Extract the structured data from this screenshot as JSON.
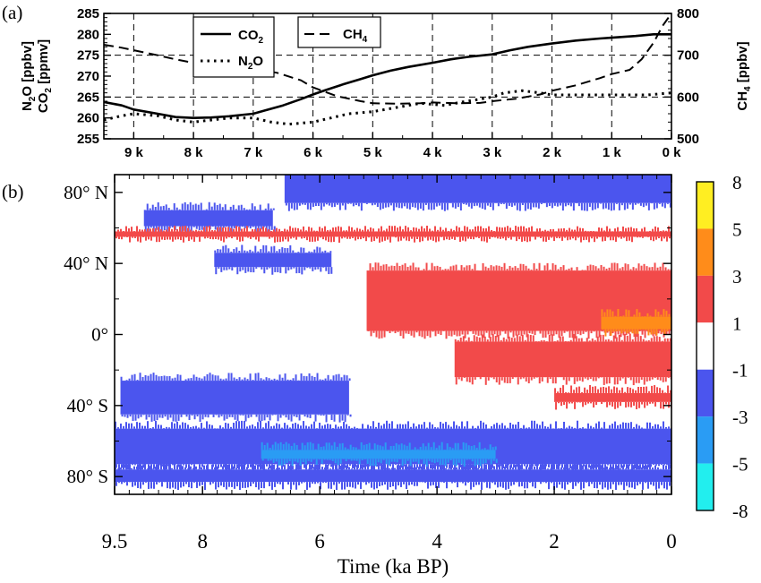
{
  "panel_a": {
    "panel_label": "(a)",
    "chart_data": {
      "type": "line",
      "x_tick_labels": [
        "9 k",
        "8 k",
        "7 k",
        "6 k",
        "5 k",
        "4 k",
        "3 k",
        "2 k",
        "1 k",
        "0 k"
      ],
      "x_ticks": [
        9,
        8,
        7,
        6,
        5,
        4,
        3,
        2,
        1,
        0
      ],
      "xlim": [
        9.5,
        0
      ],
      "left_axis": {
        "label_line1": "N2O [ppbv]",
        "label_line2": "CO2 [ppmv]",
        "ylim": [
          255,
          285
        ],
        "ticks": [
          "255",
          "260",
          "265",
          "270",
          "275",
          "280",
          "285"
        ]
      },
      "right_axis": {
        "label": "CH4 [ppbv]",
        "ylim": [
          500,
          800
        ],
        "ticks": [
          "500",
          "600",
          "700",
          "800"
        ]
      },
      "legend": {
        "placement": "top-center",
        "entries": [
          "CO2",
          "N2O",
          "CH4"
        ]
      },
      "grid": true,
      "series": [
        {
          "name": "CO2",
          "style": "solid",
          "axis": "left",
          "x": [
            9.5,
            9.2,
            9.0,
            8.6,
            8.3,
            8.0,
            7.7,
            7.4,
            7.0,
            6.8,
            6.5,
            6.2,
            6.0,
            5.8,
            5.5,
            5.2,
            5.0,
            4.7,
            4.4,
            4.0,
            3.7,
            3.4,
            3.0,
            2.7,
            2.4,
            2.0,
            1.6,
            1.2,
            1.0,
            0.6,
            0.3,
            0.0
          ],
          "y": [
            263.8,
            263.0,
            262.0,
            261.0,
            260.2,
            260.0,
            260.1,
            260.4,
            261.0,
            261.8,
            263.0,
            264.5,
            265.6,
            266.6,
            268.0,
            269.3,
            270.2,
            271.3,
            272.2,
            273.2,
            274.0,
            274.6,
            275.2,
            276.2,
            277.0,
            277.8,
            278.5,
            279.0,
            279.2,
            279.6,
            280.0,
            280.0
          ]
        },
        {
          "name": "N2O",
          "style": "dotted",
          "axis": "left",
          "x": [
            9.5,
            9.2,
            9.0,
            8.6,
            8.3,
            8.0,
            7.7,
            7.4,
            7.0,
            6.7,
            6.4,
            6.0,
            5.7,
            5.4,
            5.0,
            4.6,
            4.2,
            3.8,
            3.5,
            3.2,
            3.0,
            2.8,
            2.5,
            2.2,
            2.0,
            1.7,
            1.4,
            1.0,
            0.7,
            0.4,
            0.0
          ],
          "y": [
            259.5,
            260.5,
            261.0,
            260.5,
            259.5,
            259.0,
            259.5,
            260.0,
            260.0,
            259.0,
            258.5,
            259.0,
            260.0,
            261.0,
            261.5,
            262.5,
            263.5,
            263.0,
            263.8,
            264.5,
            265.0,
            266.0,
            266.5,
            266.0,
            265.5,
            265.5,
            265.5,
            265.5,
            265.5,
            265.5,
            266.0
          ]
        },
        {
          "name": "CH4",
          "style": "dashed",
          "axis": "right",
          "x": [
            9.5,
            9.2,
            9.0,
            8.6,
            8.3,
            8.0,
            7.7,
            7.4,
            7.0,
            6.6,
            6.2,
            6.0,
            5.6,
            5.2,
            5.0,
            4.6,
            4.2,
            4.0,
            3.6,
            3.2,
            3.0,
            2.6,
            2.2,
            2.0,
            1.6,
            1.2,
            1.0,
            0.7,
            0.5,
            0.3,
            0.15,
            0.0
          ],
          "y": [
            725,
            718,
            712,
            700,
            690,
            682,
            675,
            670,
            668,
            658,
            640,
            623,
            602,
            590,
            585,
            584,
            585,
            587,
            585,
            586,
            590,
            596,
            606,
            615,
            628,
            645,
            655,
            665,
            690,
            730,
            770,
            800
          ]
        }
      ]
    }
  },
  "panel_b": {
    "panel_label": "(b)",
    "chart_data": {
      "type": "heatmap",
      "xlabel": "Time (ka BP)",
      "xlim": [
        9.5,
        0
      ],
      "x_ticks": [
        9.5,
        8,
        6,
        4,
        2,
        0
      ],
      "x_tick_labels": [
        "9.5",
        "8",
        "6",
        "4",
        "2",
        "0"
      ],
      "ylim": [
        -90,
        90
      ],
      "y_ticks": [
        80,
        40,
        0,
        -40,
        -80
      ],
      "y_tick_labels": [
        "80° N",
        "40° N",
        "0°",
        "40° S",
        "80° S"
      ],
      "colorbar": {
        "boundaries": [
          "-8",
          "-5",
          "-3",
          "-1",
          "1",
          "3",
          "5",
          "8"
        ],
        "colors": [
          "#22eeee",
          "#2a9cf4",
          "#4b55ee",
          "#ffffff",
          "#f24a4a",
          "#ff8c1a",
          "#ffee22"
        ]
      },
      "regions": [
        {
          "t_start": 6.6,
          "t_end": 0.0,
          "lat_south": 74,
          "lat_north": 90,
          "class": "-3 to -1"
        },
        {
          "t_start": 9.0,
          "t_end": 6.8,
          "lat_south": 61,
          "lat_north": 70,
          "class": "-3 to -1"
        },
        {
          "t_start": 9.5,
          "t_end": 0.0,
          "lat_south": 55,
          "lat_north": 58,
          "class": "1 to 3"
        },
        {
          "t_start": 7.8,
          "t_end": 5.8,
          "lat_south": 38,
          "lat_north": 46,
          "class": "-3 to -1"
        },
        {
          "t_start": 5.2,
          "t_end": 0.0,
          "lat_south": 2,
          "lat_north": 36,
          "class": "1 to 3"
        },
        {
          "t_start": 1.2,
          "t_end": 0.0,
          "lat_south": 3,
          "lat_north": 10,
          "class": "3 to 5"
        },
        {
          "t_start": 3.7,
          "t_end": 0.0,
          "lat_south": -24,
          "lat_north": -4,
          "class": "1 to 3"
        },
        {
          "t_start": 2.0,
          "t_end": 0.0,
          "lat_south": -38,
          "lat_north": -33,
          "class": "1 to 3"
        },
        {
          "t_start": 9.4,
          "t_end": 5.5,
          "lat_south": -45,
          "lat_north": -26,
          "class": "-3 to -1"
        },
        {
          "t_start": 9.5,
          "t_end": 0.0,
          "lat_south": -73,
          "lat_north": -53,
          "class": "-3 to -1"
        },
        {
          "t_start": 9.5,
          "t_end": 0.0,
          "lat_south": -83,
          "lat_north": -76,
          "class": "-3 to -1"
        },
        {
          "t_start": 7.0,
          "t_end": 3.0,
          "lat_south": -70,
          "lat_north": -65,
          "class": "-5 to -3"
        }
      ]
    }
  }
}
